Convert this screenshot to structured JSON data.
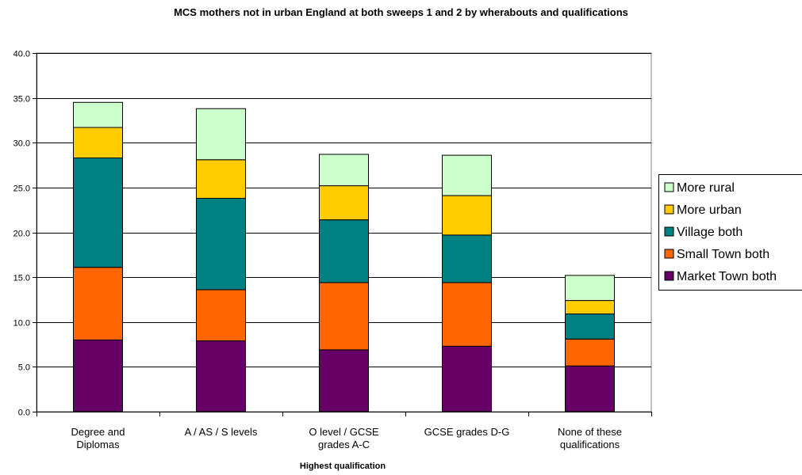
{
  "chart_data": {
    "type": "bar",
    "stacked": true,
    "title": "MCS mothers not in urban England at both sweeps 1 and 2 by wherabouts and qualifications",
    "xlabel": "Highest qualification",
    "ylabel": "",
    "ylim": [
      0,
      40
    ],
    "yticks": [
      "0.0",
      "5.0",
      "10.0",
      "15.0",
      "20.0",
      "25.0",
      "30.0",
      "35.0",
      "40.0"
    ],
    "categories": [
      [
        "Degree and",
        "Diplomas"
      ],
      [
        "A / AS / S levels"
      ],
      [
        "O level / GCSE",
        "grades A-C"
      ],
      [
        "GCSE grades D-G"
      ],
      [
        "None of these",
        "qualifications"
      ]
    ],
    "grid": true,
    "legend_position": "right",
    "series": [
      {
        "name": "Market Town both",
        "color": "#660066",
        "values": [
          8.0,
          7.9,
          6.9,
          7.3,
          5.1
        ]
      },
      {
        "name": "Small Town both",
        "color": "#FF6600",
        "values": [
          8.1,
          5.7,
          7.5,
          7.1,
          3.0
        ]
      },
      {
        "name": "Village both",
        "color": "#008080",
        "values": [
          12.2,
          10.2,
          7.0,
          5.3,
          2.8
        ]
      },
      {
        "name": "More urban",
        "color": "#FFCC00",
        "values": [
          3.4,
          4.3,
          3.8,
          4.4,
          1.5
        ]
      },
      {
        "name": "More rural",
        "color": "#CCFFCC",
        "values": [
          2.8,
          5.7,
          3.5,
          4.5,
          2.8
        ]
      }
    ]
  }
}
